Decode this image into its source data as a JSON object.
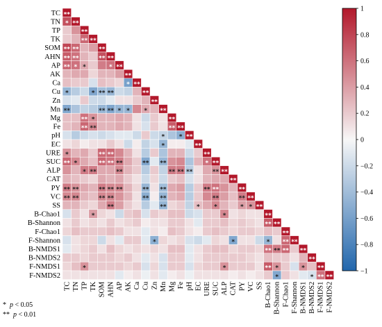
{
  "chart_data": {
    "type": "heatmap",
    "variables": [
      "TC",
      "TN",
      "TP",
      "TK",
      "SOM",
      "AHN",
      "AP",
      "AK",
      "Ca",
      "Cu",
      "Zn",
      "Mn",
      "Mg",
      "Fe",
      "pH",
      "EC",
      "URE",
      "SUC",
      "ALP",
      "CAT",
      "PY",
      "VC",
      "SS",
      "B-Chao1",
      "B-Shannon",
      "F-Chao1",
      "F-Shannon",
      "B-NMDS1",
      "B-NMDS2",
      "F-NMDS1",
      "F-NMDS2"
    ],
    "colorbar": {
      "min": -1,
      "max": 1,
      "ticks": [
        -1,
        -0.8,
        -0.6,
        -0.4,
        -0.2,
        0,
        0.2,
        0.4,
        0.6,
        0.8,
        1
      ]
    },
    "colors": {
      "negative": "#2166ac",
      "neutral": "#f7f7f7",
      "positive": "#b2182b"
    },
    "cells": [
      [
        1
      ],
      [
        0.75,
        1
      ],
      [
        0.2,
        0.45,
        1
      ],
      [
        0.2,
        0.3,
        0.65,
        1
      ],
      [
        0.8,
        0.65,
        0.3,
        0.4,
        1
      ],
      [
        0.7,
        0.6,
        0.3,
        0.2,
        0.75,
        1
      ],
      [
        0.65,
        0.6,
        0.35,
        0.2,
        0.55,
        0.6,
        1
      ],
      [
        0.3,
        0.35,
        0.35,
        0.15,
        0.3,
        0.3,
        0.4,
        1
      ],
      [
        0.25,
        0.2,
        0.2,
        -0.15,
        0.25,
        0.2,
        0.15,
        -0.6,
        1
      ],
      [
        -0.45,
        -0.3,
        -0.2,
        -0.55,
        -0.4,
        -0.45,
        -0.2,
        -0.25,
        0.3,
        1
      ],
      [
        -0.15,
        -0.1,
        0.2,
        -0.2,
        -0.2,
        -0.1,
        0.1,
        0.1,
        0.2,
        0.3,
        1
      ],
      [
        -0.55,
        -0.35,
        -0.25,
        -0.3,
        -0.45,
        -0.55,
        -0.45,
        -0.45,
        0.5,
        0.35,
        0.3,
        1
      ],
      [
        0.25,
        0.25,
        0.6,
        0.45,
        0.3,
        0.3,
        0.35,
        0.3,
        0.1,
        -0.2,
        0.2,
        0.1,
        1
      ],
      [
        0.25,
        0.3,
        0.65,
        0.5,
        0.3,
        0.3,
        0.35,
        0.3,
        0.1,
        -0.15,
        0.2,
        0.1,
        0.7,
        1
      ],
      [
        -0.15,
        -0.3,
        -0.2,
        -0.15,
        -0.2,
        -0.15,
        -0.1,
        -0.1,
        -0.2,
        0.2,
        -0.2,
        -0.25,
        -0.35,
        -0.5,
        1
      ],
      [
        0.1,
        0.15,
        0.05,
        0.1,
        0.1,
        0.2,
        0.1,
        -0.2,
        0.05,
        -0.25,
        -0.15,
        -0.45,
        0.05,
        0.05,
        -0.1,
        1
      ],
      [
        0.45,
        0.3,
        0.35,
        0.2,
        0.65,
        0.65,
        0.5,
        0.3,
        0.1,
        -0.3,
        0.2,
        -0.35,
        0.3,
        0.3,
        -0.2,
        0.2,
        1
      ],
      [
        0.65,
        0.5,
        0.35,
        0.25,
        0.65,
        0.6,
        0.55,
        0.35,
        0.2,
        -0.55,
        -0.1,
        -0.45,
        0.45,
        0.5,
        -0.35,
        0.3,
        0.6,
        1
      ],
      [
        0.45,
        0.3,
        0.55,
        0.55,
        0.35,
        0.35,
        0.5,
        0.3,
        0.2,
        -0.3,
        0.2,
        -0.25,
        0.55,
        0.55,
        -0.3,
        0.1,
        0.35,
        0.45,
        1
      ],
      [
        0.3,
        0.25,
        0.2,
        0.15,
        0.35,
        0.3,
        0.35,
        0.2,
        0.1,
        -0.2,
        0.15,
        -0.2,
        0.2,
        0.25,
        -0.15,
        0.1,
        0.3,
        0.35,
        0.35,
        1
      ],
      [
        0.55,
        0.45,
        0.35,
        0.3,
        0.55,
        0.5,
        0.5,
        0.3,
        0.15,
        -0.45,
        0.1,
        -0.4,
        0.35,
        0.4,
        -0.3,
        0.2,
        0.55,
        0.6,
        0.45,
        0.3,
        1
      ],
      [
        0.5,
        0.5,
        0.3,
        0.25,
        0.5,
        0.5,
        0.45,
        0.3,
        0.1,
        -0.5,
        0.05,
        -0.45,
        0.3,
        0.35,
        -0.3,
        0.2,
        0.5,
        0.55,
        0.4,
        0.25,
        0.55,
        1
      ],
      [
        0.3,
        0.3,
        0.2,
        0.15,
        0.35,
        0.55,
        0.4,
        0.2,
        0.1,
        -0.3,
        -0.1,
        -0.45,
        0.15,
        0.2,
        -0.25,
        0.25,
        0.35,
        0.5,
        0.3,
        0.2,
        0.4,
        0.45,
        1
      ],
      [
        -0.15,
        0.2,
        0.1,
        0.4,
        0.15,
        0.1,
        -0.2,
        0.2,
        0.25,
        -0.15,
        0.2,
        0.15,
        0.25,
        0.25,
        -0.2,
        -0.15,
        0.2,
        0.2,
        0.5,
        0.1,
        0.15,
        0.1,
        0.1,
        1
      ],
      [
        0.1,
        0.2,
        0.1,
        0.15,
        0.1,
        0.2,
        0.1,
        0.15,
        0.2,
        0.05,
        0.1,
        0.1,
        0.2,
        0.2,
        0.1,
        -0.1,
        0.2,
        0.2,
        0.25,
        0.15,
        0.2,
        0.15,
        0.1,
        0.7,
        1
      ],
      [
        0.15,
        0.25,
        0.2,
        0.2,
        0.2,
        0.25,
        0.2,
        0.1,
        0.1,
        -0.1,
        0.1,
        0.05,
        0.25,
        0.2,
        0.1,
        0.05,
        0.2,
        0.25,
        0.2,
        0.15,
        0.2,
        0.2,
        0.15,
        0.25,
        0.2,
        1
      ],
      [
        -0.15,
        0.1,
        0.15,
        0.15,
        -0.2,
        0.1,
        -0.1,
        0.2,
        0.2,
        -0.1,
        -0.5,
        0.15,
        0.1,
        0.15,
        -0.15,
        -0.2,
        -0.1,
        0.15,
        0.1,
        -0.55,
        0.1,
        0.1,
        -0.2,
        -0.45,
        0.1,
        0.65,
        1
      ],
      [
        -0.1,
        0.1,
        0.15,
        0.2,
        0.1,
        0.25,
        0.15,
        0.1,
        0.15,
        0.1,
        0.15,
        0.1,
        0.25,
        0.25,
        -0.1,
        0.1,
        0.2,
        0.25,
        0.25,
        0.15,
        0.2,
        0.2,
        0.15,
        0.6,
        0.55,
        0.65,
        0.2,
        1
      ],
      [
        0.2,
        0.2,
        0.15,
        0.2,
        0.2,
        0.2,
        0.15,
        0.2,
        0.1,
        -0.1,
        0.1,
        -0.15,
        0.2,
        0.2,
        -0.1,
        0.1,
        0.2,
        0.2,
        0.2,
        0.2,
        0.2,
        0.15,
        0.1,
        0.25,
        0.2,
        0.2,
        0.1,
        0.3,
        1
      ],
      [
        0.15,
        0.25,
        0.45,
        0.2,
        0.2,
        0.2,
        0.2,
        0.15,
        0.2,
        -0.15,
        0.15,
        -0.15,
        0.2,
        0.2,
        -0.15,
        0.15,
        0.2,
        0.2,
        0.45,
        0.2,
        0.2,
        0.2,
        0.1,
        0.7,
        0.45,
        0.2,
        -0.15,
        0.45,
        0.25,
        1
      ],
      [
        0.1,
        0.1,
        0.1,
        0.1,
        0.1,
        0.1,
        -0.1,
        0.05,
        0.1,
        -0.05,
        0.1,
        -0.1,
        0.05,
        0.1,
        -0.05,
        0.1,
        0.1,
        0.1,
        0.1,
        0.05,
        0.1,
        0.05,
        0.1,
        0.2,
        -0.55,
        0.2,
        0.1,
        -0.1,
        -0.15,
        0.6,
        1
      ]
    ],
    "significance": [
      [
        2
      ],
      [
        1,
        2
      ],
      [
        0,
        0,
        2
      ],
      [
        0,
        0,
        2,
        2
      ],
      [
        2,
        2,
        0,
        0,
        2
      ],
      [
        2,
        2,
        0,
        0,
        2,
        2
      ],
      [
        2,
        1,
        1,
        0,
        0,
        1,
        2
      ],
      [
        0,
        0,
        0,
        0,
        0,
        0,
        0,
        2
      ],
      [
        0,
        0,
        0,
        0,
        0,
        0,
        0,
        1,
        2
      ],
      [
        1,
        0,
        0,
        1,
        2,
        2,
        0,
        0,
        0,
        2
      ],
      [
        0,
        0,
        0,
        0,
        0,
        0,
        0,
        0,
        0,
        0,
        2
      ],
      [
        2,
        0,
        0,
        0,
        2,
        2,
        1,
        1,
        0,
        1,
        0,
        2
      ],
      [
        0,
        0,
        2,
        1,
        0,
        0,
        0,
        0,
        0,
        0,
        0,
        0,
        2
      ],
      [
        0,
        0,
        2,
        2,
        0,
        0,
        0,
        0,
        0,
        0,
        0,
        0,
        2,
        2
      ],
      [
        0,
        0,
        0,
        0,
        0,
        0,
        0,
        0,
        0,
        0,
        0,
        1,
        0,
        1,
        2
      ],
      [
        0,
        0,
        0,
        0,
        0,
        0,
        0,
        0,
        0,
        0,
        0,
        1,
        0,
        0,
        0,
        2
      ],
      [
        1,
        0,
        0,
        0,
        2,
        2,
        0,
        0,
        0,
        0,
        0,
        0,
        0,
        0,
        0,
        0,
        2
      ],
      [
        2,
        1,
        0,
        0,
        2,
        2,
        2,
        0,
        0,
        2,
        0,
        2,
        0,
        0,
        0,
        0,
        1,
        2
      ],
      [
        0,
        0,
        1,
        2,
        0,
        0,
        2,
        0,
        0,
        0,
        0,
        0,
        2,
        2,
        2,
        0,
        0,
        2,
        2
      ],
      [
        0,
        0,
        0,
        0,
        0,
        0,
        0,
        0,
        0,
        0,
        0,
        0,
        0,
        0,
        0,
        0,
        0,
        0,
        0,
        2
      ],
      [
        2,
        2,
        0,
        0,
        2,
        2,
        2,
        0,
        0,
        2,
        0,
        2,
        0,
        0,
        0,
        0,
        2,
        2,
        0,
        0,
        2
      ],
      [
        2,
        2,
        0,
        0,
        2,
        2,
        0,
        0,
        0,
        2,
        0,
        2,
        0,
        0,
        0,
        0,
        0,
        2,
        0,
        0,
        2,
        2
      ],
      [
        0,
        0,
        0,
        0,
        0,
        2,
        0,
        0,
        0,
        0,
        0,
        2,
        0,
        0,
        0,
        1,
        0,
        1,
        0,
        0,
        1,
        1,
        2
      ],
      [
        0,
        0,
        0,
        1,
        0,
        0,
        0,
        0,
        0,
        0,
        0,
        0,
        0,
        0,
        0,
        0,
        0,
        0,
        1,
        0,
        0,
        0,
        0,
        2
      ],
      [
        0,
        0,
        0,
        0,
        0,
        0,
        0,
        0,
        0,
        0,
        0,
        0,
        0,
        0,
        0,
        0,
        0,
        0,
        0,
        0,
        0,
        0,
        0,
        2,
        2
      ],
      [
        0,
        0,
        0,
        0,
        0,
        0,
        0,
        0,
        0,
        0,
        0,
        0,
        0,
        0,
        0,
        0,
        0,
        0,
        0,
        0,
        0,
        0,
        0,
        0,
        0,
        2
      ],
      [
        0,
        0,
        0,
        0,
        0,
        0,
        0,
        0,
        0,
        0,
        1,
        0,
        0,
        0,
        0,
        0,
        0,
        0,
        0,
        1,
        0,
        0,
        0,
        1,
        0,
        2,
        2
      ],
      [
        0,
        0,
        0,
        0,
        0,
        0,
        0,
        0,
        0,
        0,
        0,
        0,
        0,
        0,
        0,
        0,
        0,
        0,
        0,
        0,
        0,
        0,
        0,
        2,
        2,
        2,
        0,
        2
      ],
      [
        0,
        0,
        0,
        0,
        0,
        0,
        0,
        0,
        0,
        0,
        0,
        0,
        0,
        0,
        0,
        0,
        0,
        0,
        0,
        0,
        0,
        0,
        0,
        0,
        0,
        0,
        0,
        0,
        2
      ],
      [
        0,
        0,
        1,
        0,
        0,
        0,
        0,
        0,
        0,
        0,
        0,
        0,
        0,
        0,
        0,
        0,
        0,
        0,
        1,
        0,
        0,
        0,
        0,
        2,
        1,
        0,
        0,
        1,
        0,
        2
      ],
      [
        0,
        0,
        0,
        0,
        0,
        0,
        0,
        0,
        0,
        0,
        0,
        0,
        0,
        0,
        0,
        0,
        0,
        0,
        0,
        0,
        0,
        0,
        0,
        0,
        1,
        0,
        0,
        0,
        1,
        2,
        2
      ]
    ]
  },
  "legend_notes": [
    {
      "stars": "*",
      "p_label": "p",
      "threshold": "< 0.05"
    },
    {
      "stars": "**",
      "p_label": "p",
      "threshold": "< 0.01"
    }
  ]
}
